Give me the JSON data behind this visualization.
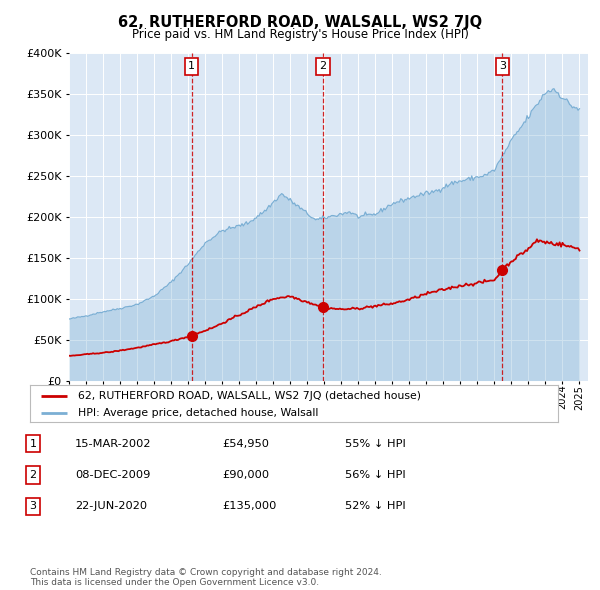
{
  "title": "62, RUTHERFORD ROAD, WALSALL, WS2 7JQ",
  "subtitle": "Price paid vs. HM Land Registry's House Price Index (HPI)",
  "background_color": "#dce8f5",
  "red_line_color": "#cc0000",
  "blue_line_color": "#7bafd4",
  "grid_color": "#ffffff",
  "transaction_times": [
    2002.208,
    2009.917,
    2020.472
  ],
  "transaction_prices": [
    54950,
    90000,
    135000
  ],
  "transaction_labels": [
    "1",
    "2",
    "3"
  ],
  "legend_red": "62, RUTHERFORD ROAD, WALSALL, WS2 7JQ (detached house)",
  "legend_blue": "HPI: Average price, detached house, Walsall",
  "table_rows": [
    {
      "num": "1",
      "date": "15-MAR-2002",
      "price": "£54,950",
      "pct": "55% ↓ HPI"
    },
    {
      "num": "2",
      "date": "08-DEC-2009",
      "price": "£90,000",
      "pct": "56% ↓ HPI"
    },
    {
      "num": "3",
      "date": "22-JUN-2020",
      "price": "£135,000",
      "pct": "52% ↓ HPI"
    }
  ],
  "footer": "Contains HM Land Registry data © Crown copyright and database right 2024.\nThis data is licensed under the Open Government Licence v3.0.",
  "ylim": [
    0,
    400000
  ],
  "yticks": [
    0,
    50000,
    100000,
    150000,
    200000,
    250000,
    300000,
    350000,
    400000
  ],
  "xlim": [
    1995.0,
    2025.5
  ],
  "hpi_anchors": {
    "1995.0": 75000,
    "1996.0": 79000,
    "1997.0": 84000,
    "1998.0": 88000,
    "1999.0": 93000,
    "2000.0": 103000,
    "2001.0": 120000,
    "2002.0": 142000,
    "2003.0": 168000,
    "2004.0": 183000,
    "2005.5": 192000,
    "2006.5": 207000,
    "2007.5": 228000,
    "2008.5": 212000,
    "2009.5": 196000,
    "2010.5": 201000,
    "2011.5": 206000,
    "2012.0": 200000,
    "2013.0": 203000,
    "2014.0": 216000,
    "2015.5": 226000,
    "2016.5": 231000,
    "2017.5": 241000,
    "2018.5": 246000,
    "2019.5": 251000,
    "2020.0": 257000,
    "2021.0": 293000,
    "2022.0": 322000,
    "2023.0": 352000,
    "2023.5": 356000,
    "2024.0": 346000,
    "2024.5": 336000,
    "2025.0": 331000
  },
  "red_anchors": {
    "1995.0": 30000,
    "1996.0": 32000,
    "1997.5": 35000,
    "1999.0": 40000,
    "2001.0": 48000,
    "2002.208": 54950,
    "2003.5": 65000,
    "2005.0": 80000,
    "2007.0": 100000,
    "2008.0": 103000,
    "2009.0": 96000,
    "2009.917": 90000,
    "2010.5": 88000,
    "2011.0": 87000,
    "2012.0": 88000,
    "2013.0": 91000,
    "2014.0": 94000,
    "2015.0": 99000,
    "2016.0": 106000,
    "2017.0": 111000,
    "2018.0": 116000,
    "2019.0": 119000,
    "2020.0": 123000,
    "2020.472": 135000,
    "2021.0": 146000,
    "2022.0": 161000,
    "2022.5": 171000,
    "2023.0": 169000,
    "2024.0": 166000,
    "2024.5": 163000,
    "2025.0": 161000
  }
}
